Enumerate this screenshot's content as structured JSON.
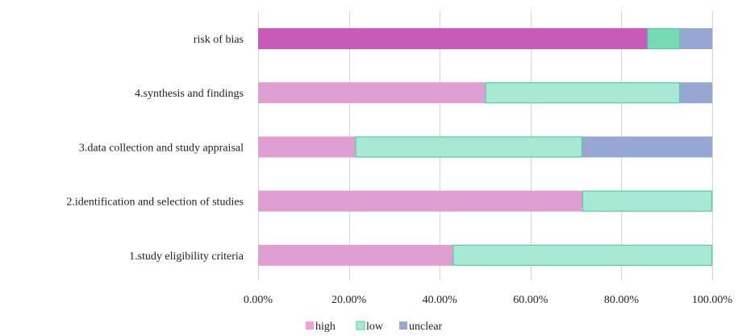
{
  "chart_data": {
    "type": "bar",
    "orientation": "horizontal",
    "stacked": true,
    "title": "",
    "xlabel": "",
    "ylabel": "",
    "xlim": [
      0,
      1
    ],
    "x_ticks": [
      0,
      0.2,
      0.4,
      0.6,
      0.8,
      1.0
    ],
    "x_tick_labels": [
      "0.00%",
      "20.00%",
      "40.00%",
      "60.00%",
      "80.00%",
      "100.00%"
    ],
    "grid": true,
    "legend_position": "bottom",
    "categories": [
      "risk of bias",
      "4.synthesis and findings",
      "3.data collection and study appraisal",
      "2.identification and selection of studies",
      "1.study eligibility criteria"
    ],
    "series": [
      {
        "name": "high",
        "values": [
          0.857,
          0.5,
          0.214,
          0.714,
          0.429
        ]
      },
      {
        "name": "low",
        "values": [
          0.072,
          0.429,
          0.5,
          0.286,
          0.571
        ]
      },
      {
        "name": "unclear",
        "values": [
          0.071,
          0.071,
          0.286,
          0.0,
          0.0
        ]
      }
    ],
    "colors": {
      "high": "#e09fd3",
      "low": "#a9e8d5",
      "unclear": "#97a7d4",
      "high_emphasis": "#c85ab8",
      "low_emphasis": "#78d9b5",
      "low_border": "#4fcf9e",
      "legend_high": "#f59fd9"
    },
    "emphasized_category": "risk of bias"
  }
}
